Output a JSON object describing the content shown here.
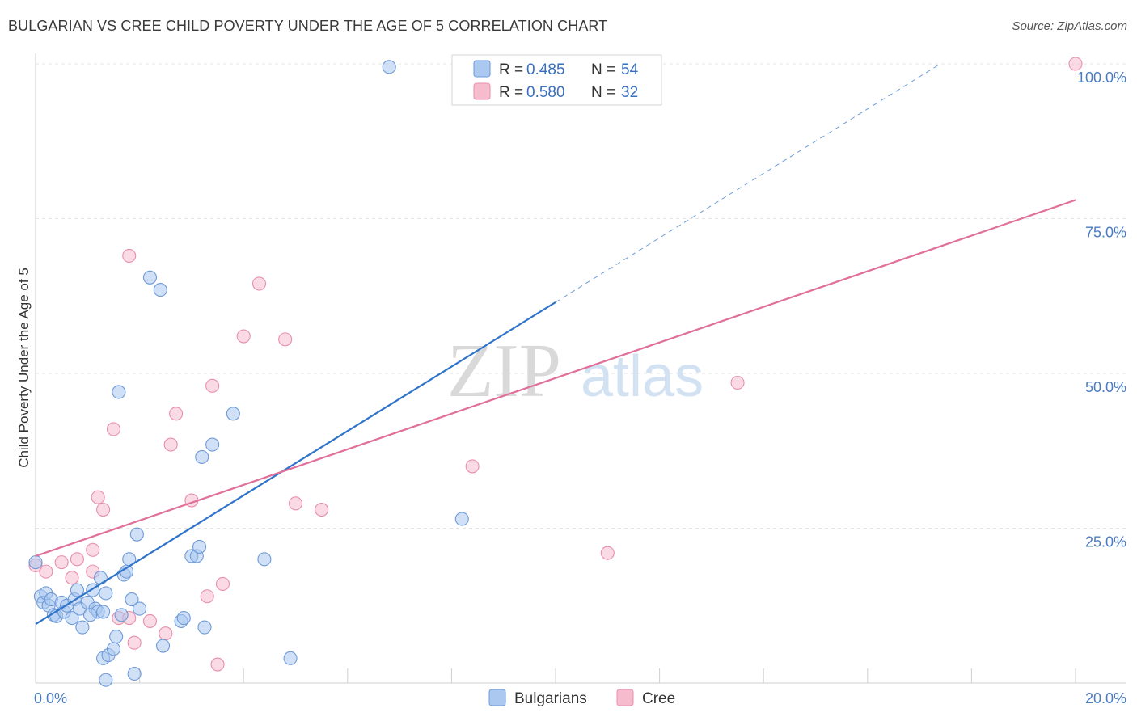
{
  "title": "BULGARIAN VS CREE CHILD POVERTY UNDER THE AGE OF 5 CORRELATION CHART",
  "source": "Source: ZipAtlas.com",
  "colors": {
    "bulgarians_fill": "#aac8f0",
    "bulgarians_stroke": "#6f9ad8",
    "bulgarians_line": "#2f74c9",
    "cree_fill": "#f6bccd",
    "cree_stroke": "#e88fac",
    "cree_line": "#e0709a"
  },
  "legend_top": {
    "rows": [
      {
        "r_label": "R =",
        "r_value": "0.485",
        "n_label": "N =",
        "n_value": "54"
      },
      {
        "r_label": "R =",
        "r_value": "0.580",
        "n_label": "N =",
        "n_value": "32"
      }
    ]
  },
  "legend_bottom": [
    "Bulgarians",
    "Cree"
  ],
  "watermark": {
    "part1": "ZIP",
    "part2": "atlas"
  },
  "chart_data": {
    "type": "scatter",
    "title": "BULGARIAN VS CREE CHILD POVERTY UNDER THE AGE OF 5 CORRELATION CHART",
    "xlabel": "",
    "ylabel": "Child Poverty Under the Age of 5",
    "xlim": [
      0,
      20
    ],
    "ylim": [
      0,
      100
    ],
    "x_tick_labels": [
      "0.0%",
      "20.0%"
    ],
    "y_tick_labels": [
      "25.0%",
      "50.0%",
      "75.0%",
      "100.0%"
    ],
    "y_ticks": [
      25,
      50,
      75,
      100
    ],
    "grid": true,
    "legend_position": "top-center",
    "series": [
      {
        "name": "Bulgarians",
        "R": 0.485,
        "N": 54,
        "trend": {
          "x0": 0,
          "y0": 9.5,
          "x1": 10.0,
          "y1": 61.5,
          "dashed_to_x": 17.4,
          "dashed_to_y": 100
        },
        "points": [
          [
            0.0,
            19.5
          ],
          [
            0.1,
            14.0
          ],
          [
            0.15,
            13.0
          ],
          [
            0.2,
            14.5
          ],
          [
            0.25,
            12.5
          ],
          [
            0.3,
            13.5
          ],
          [
            0.35,
            11.0
          ],
          [
            0.4,
            10.8
          ],
          [
            0.5,
            13.0
          ],
          [
            0.55,
            11.5
          ],
          [
            0.6,
            12.5
          ],
          [
            0.7,
            10.5
          ],
          [
            0.75,
            13.5
          ],
          [
            0.8,
            15.0
          ],
          [
            0.85,
            12.0
          ],
          [
            0.9,
            9.0
          ],
          [
            1.0,
            13.0
          ],
          [
            1.1,
            15.0
          ],
          [
            1.15,
            12.0
          ],
          [
            1.2,
            11.5
          ],
          [
            1.25,
            17.0
          ],
          [
            1.3,
            11.5
          ],
          [
            1.35,
            14.5
          ],
          [
            1.3,
            4.0
          ],
          [
            1.4,
            4.5
          ],
          [
            1.35,
            0.5
          ],
          [
            1.5,
            5.5
          ],
          [
            1.55,
            7.5
          ],
          [
            1.6,
            47.0
          ],
          [
            1.65,
            11.0
          ],
          [
            1.7,
            17.5
          ],
          [
            1.75,
            18.0
          ],
          [
            1.8,
            20.0
          ],
          [
            1.85,
            13.5
          ],
          [
            1.9,
            1.5
          ],
          [
            1.95,
            24.0
          ],
          [
            2.0,
            12.0
          ],
          [
            2.2,
            65.5
          ],
          [
            2.4,
            63.5
          ],
          [
            2.45,
            6.0
          ],
          [
            2.8,
            10.0
          ],
          [
            3.0,
            20.5
          ],
          [
            3.1,
            20.5
          ],
          [
            3.15,
            22.0
          ],
          [
            3.2,
            36.5
          ],
          [
            3.25,
            9.0
          ],
          [
            3.4,
            38.5
          ],
          [
            3.8,
            43.5
          ],
          [
            4.4,
            20.0
          ],
          [
            4.9,
            4.0
          ],
          [
            6.8,
            99.5
          ],
          [
            8.2,
            26.5
          ],
          [
            2.85,
            10.5
          ],
          [
            1.05,
            11.0
          ]
        ]
      },
      {
        "name": "Cree",
        "R": 0.58,
        "N": 32,
        "trend": {
          "x0": 0,
          "y0": 20.5,
          "x1": 20.0,
          "y1": 78.0
        },
        "points": [
          [
            0.0,
            19.0
          ],
          [
            0.2,
            18.0
          ],
          [
            0.5,
            19.5
          ],
          [
            0.7,
            17.0
          ],
          [
            0.8,
            20.0
          ],
          [
            1.1,
            18.0
          ],
          [
            1.1,
            21.5
          ],
          [
            1.2,
            30.0
          ],
          [
            1.3,
            28.0
          ],
          [
            1.5,
            41.0
          ],
          [
            1.6,
            10.5
          ],
          [
            1.8,
            10.5
          ],
          [
            1.9,
            6.5
          ],
          [
            2.2,
            10.0
          ],
          [
            2.5,
            8.0
          ],
          [
            2.6,
            38.5
          ],
          [
            2.7,
            43.5
          ],
          [
            3.0,
            29.5
          ],
          [
            3.3,
            14.0
          ],
          [
            3.4,
            48.0
          ],
          [
            3.5,
            3.0
          ],
          [
            3.6,
            16.0
          ],
          [
            4.0,
            56.0
          ],
          [
            4.3,
            64.5
          ],
          [
            4.8,
            55.5
          ],
          [
            5.0,
            29.0
          ],
          [
            5.5,
            28.0
          ],
          [
            1.8,
            69.0
          ],
          [
            8.4,
            35.0
          ],
          [
            11.0,
            21.0
          ],
          [
            13.5,
            48.5
          ],
          [
            20.0,
            100.0
          ]
        ]
      }
    ]
  }
}
